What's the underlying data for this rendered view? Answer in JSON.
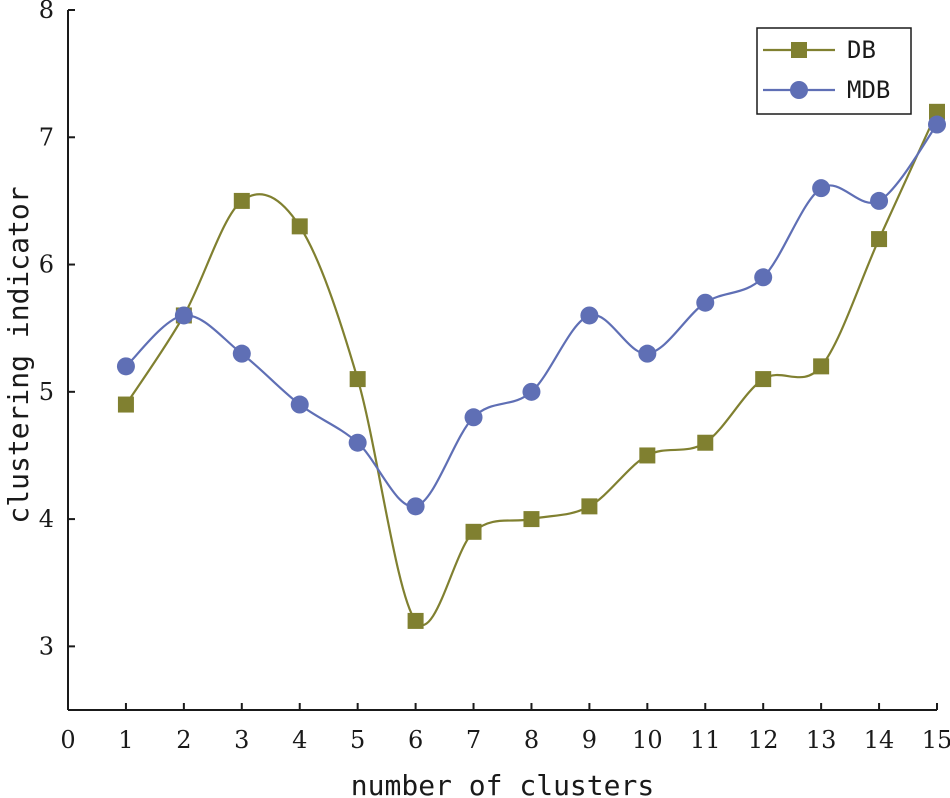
{
  "chart_data": {
    "type": "line",
    "xlabel": "number of clusters",
    "ylabel": "clustering indicator",
    "xlim": [
      0,
      15
    ],
    "ylim": [
      2.5,
      8
    ],
    "x_ticks": [
      "0",
      "1",
      "2",
      "3",
      "4",
      "5",
      "6",
      "7",
      "8",
      "9",
      "10",
      "11",
      "12",
      "13",
      "14",
      "15"
    ],
    "y_ticks": [
      "3",
      "4",
      "5",
      "6",
      "7",
      "8"
    ],
    "grid": false,
    "legend_position": "top-right",
    "smooth": true,
    "x": [
      1,
      2,
      3,
      4,
      5,
      6,
      7,
      8,
      9,
      10,
      11,
      12,
      13,
      14,
      15
    ],
    "series": [
      {
        "name": "DB",
        "marker": "square",
        "color": "#808030",
        "values": [
          4.9,
          5.6,
          6.5,
          6.3,
          5.1,
          3.2,
          3.9,
          4.0,
          4.1,
          4.5,
          4.6,
          5.1,
          5.2,
          6.2,
          7.2
        ]
      },
      {
        "name": "MDB",
        "marker": "circle",
        "color": "#5f6fb5",
        "values": [
          5.2,
          5.6,
          5.3,
          4.9,
          4.6,
          4.1,
          4.8,
          5.0,
          5.6,
          5.3,
          5.7,
          5.9,
          6.6,
          6.5,
          7.1
        ]
      }
    ]
  }
}
